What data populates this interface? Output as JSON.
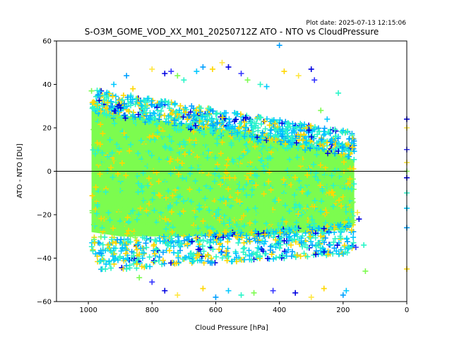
{
  "plot_date_text": "Plot date: 2025-07-13 12:15:06",
  "chart_data": {
    "type": "scatter",
    "title": "S-O3M_GOME_VOD_XX_M01_20250712Z ATO - NTO vs CloudPressure",
    "xlabel": "Cloud Pressure [hPa]",
    "ylabel": "ATO - NTO [DU]",
    "xlim": [
      1100,
      0
    ],
    "ylim": [
      -60,
      60
    ],
    "x_inverted": true,
    "x_ticks": [
      1000,
      800,
      600,
      400,
      200,
      0
    ],
    "x_tick_labels": [
      "1000",
      "800",
      "600",
      "400",
      "200",
      "0"
    ],
    "y_ticks": [
      -60,
      -40,
      -20,
      0,
      20,
      40,
      60
    ],
    "y_tick_labels": [
      "−60",
      "−40",
      "−20",
      "0",
      "20",
      "40",
      "60"
    ],
    "reference_line_y": 0,
    "marker": "plus",
    "grid": false,
    "color_palette": [
      "#7CFC4F",
      "#2AF5C8",
      "#00C8FF",
      "#00A0FF",
      "#FFD700",
      "#FFE640",
      "#0000E0",
      "#3333FF"
    ],
    "points": [
      {
        "x": 990,
        "y": 37
      },
      {
        "x": 950,
        "y": 35
      },
      {
        "x": 920,
        "y": 40
      },
      {
        "x": 880,
        "y": 44
      },
      {
        "x": 860,
        "y": 38
      },
      {
        "x": 800,
        "y": 47
      },
      {
        "x": 760,
        "y": 45
      },
      {
        "x": 740,
        "y": 46
      },
      {
        "x": 720,
        "y": 44
      },
      {
        "x": 700,
        "y": 42
      },
      {
        "x": 660,
        "y": 46
      },
      {
        "x": 640,
        "y": 48
      },
      {
        "x": 610,
        "y": 47
      },
      {
        "x": 580,
        "y": 50
      },
      {
        "x": 560,
        "y": 48
      },
      {
        "x": 520,
        "y": 45
      },
      {
        "x": 500,
        "y": 42
      },
      {
        "x": 460,
        "y": 40
      },
      {
        "x": 440,
        "y": 39
      },
      {
        "x": 400,
        "y": 58
      },
      {
        "x": 385,
        "y": 46
      },
      {
        "x": 340,
        "y": 44
      },
      {
        "x": 300,
        "y": 47
      },
      {
        "x": 290,
        "y": 42
      },
      {
        "x": 270,
        "y": 28
      },
      {
        "x": 215,
        "y": 36
      },
      {
        "x": 250,
        "y": 24
      },
      {
        "x": 180,
        "y": 15
      },
      {
        "x": 170,
        "y": 11
      },
      {
        "x": 155,
        "y": -19
      },
      {
        "x": 150,
        "y": -22
      },
      {
        "x": 160,
        "y": -35
      },
      {
        "x": 130,
        "y": -46
      },
      {
        "x": 135,
        "y": -34
      },
      {
        "x": 190,
        "y": -55
      },
      {
        "x": 200,
        "y": -57
      },
      {
        "x": 260,
        "y": -54
      },
      {
        "x": 300,
        "y": -58
      },
      {
        "x": 350,
        "y": -56
      },
      {
        "x": 420,
        "y": -55
      },
      {
        "x": 480,
        "y": -56
      },
      {
        "x": 520,
        "y": -57
      },
      {
        "x": 560,
        "y": -55
      },
      {
        "x": 600,
        "y": -58
      },
      {
        "x": 640,
        "y": -54
      },
      {
        "x": 720,
        "y": -57
      },
      {
        "x": 760,
        "y": -55
      },
      {
        "x": 800,
        "y": -51
      },
      {
        "x": 840,
        "y": -49
      },
      {
        "x": 880,
        "y": -45
      },
      {
        "x": 920,
        "y": -41
      },
      {
        "x": 960,
        "y": -38
      },
      {
        "x": 980,
        "y": -33
      },
      {
        "x": 0,
        "y": 20
      },
      {
        "x": 0,
        "y": 24
      },
      {
        "x": 0,
        "y": 10
      },
      {
        "x": 0,
        "y": 0
      },
      {
        "x": 0,
        "y": -10
      },
      {
        "x": 0,
        "y": -17
      },
      {
        "x": 0,
        "y": -26
      },
      {
        "x": 0,
        "y": -45
      },
      {
        "x": 0,
        "y": 4
      },
      {
        "x": 0,
        "y": -3
      }
    ],
    "density_region": {
      "x_range": [
        990,
        160
      ],
      "core_y_range": [
        -25,
        20
      ],
      "note_shape": "dense band spanning roughly 990 to 160 hPa; upper envelope near 32 DU at 1000 hPa decreasing to about 15 DU at 200 hPa; lower envelope near -35 DU"
    }
  }
}
